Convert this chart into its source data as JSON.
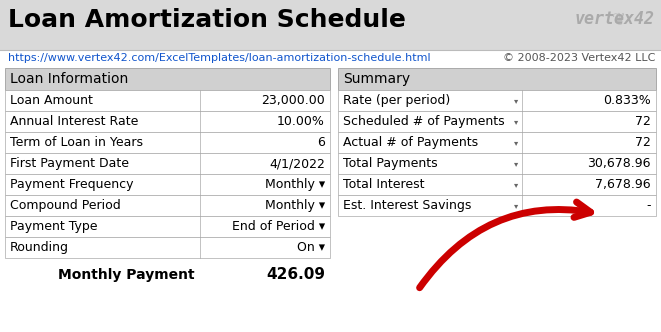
{
  "title": "Loan Amortization Schedule",
  "url": "https://www.vertex42.com/ExcelTemplates/loan-amortization-schedule.html",
  "copyright": "© 2008-2023 Vertex42 LLC",
  "logo_text": "vertex42",
  "bg_color": "#ffffff",
  "header_bg": "#d9d9d9",
  "table_header_bg": "#d0d0d0",
  "cell_border_color": "#aaaaaa",
  "left_table_header": "Loan Information",
  "left_rows": [
    [
      "Loan Amount",
      "23,000.00"
    ],
    [
      "Annual Interest Rate",
      "10.00%"
    ],
    [
      "Term of Loan in Years",
      "6"
    ],
    [
      "First Payment Date",
      "4/1/2022"
    ],
    [
      "Payment Frequency",
      "Monthly ▾"
    ],
    [
      "Compound Period",
      "Monthly ▾"
    ],
    [
      "Payment Type",
      "End of Period ▾"
    ],
    [
      "Rounding",
      "On ▾"
    ]
  ],
  "monthly_payment_label": "Monthly Payment",
  "monthly_payment_value": "426.09",
  "right_table_header": "Summary",
  "right_rows": [
    [
      "Rate (per period)",
      "0.833%"
    ],
    [
      "Scheduled # of Payments",
      "72"
    ],
    [
      "Actual # of Payments",
      "72"
    ],
    [
      "Total Payments",
      "30,678.96"
    ],
    [
      "Total Interest",
      "7,678.96"
    ],
    [
      "Est. Interest Savings",
      "-"
    ]
  ],
  "arrow_color": "#cc0000",
  "title_fontsize": 18,
  "subtitle_fontsize": 8,
  "table_header_fontsize": 10,
  "cell_fontsize": 9
}
